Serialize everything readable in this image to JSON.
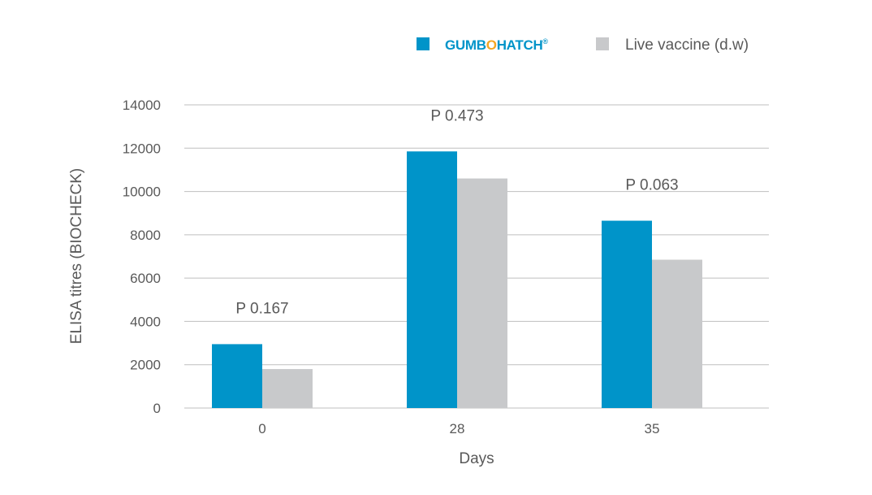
{
  "colors": {
    "gumbohatch": "#0094c9",
    "live_vaccine": "#c8c9cb",
    "brand_accent": "#f5a623",
    "gridline": "#bfbfbf",
    "text": "#595959"
  },
  "legend": {
    "series_1_brand_prefix": "GUMB",
    "series_1_brand_o": "O",
    "series_1_brand_suffix": "HATCH",
    "series_1_brand_reg": "®",
    "series_2_label": "Live vaccine (d.w)"
  },
  "chart_data": {
    "type": "bar",
    "categories": [
      "0",
      "28",
      "35"
    ],
    "series": [
      {
        "name": "GUMBOHATCH®",
        "values": [
          2950,
          11850,
          8650
        ]
      },
      {
        "name": "Live vaccine (d.w)",
        "values": [
          1800,
          10600,
          6850
        ]
      }
    ],
    "annotations": [
      "P 0.167",
      "P 0.473",
      "P 0.063"
    ],
    "xlabel": "Days",
    "ylabel": "ELISA titres (BIOCHECK)",
    "ylim": [
      0,
      14000
    ],
    "yticks": [
      "0",
      "2000",
      "4000",
      "6000",
      "8000",
      "10000",
      "12000",
      "14000"
    ],
    "grid": true,
    "legend_position": "top-right"
  }
}
